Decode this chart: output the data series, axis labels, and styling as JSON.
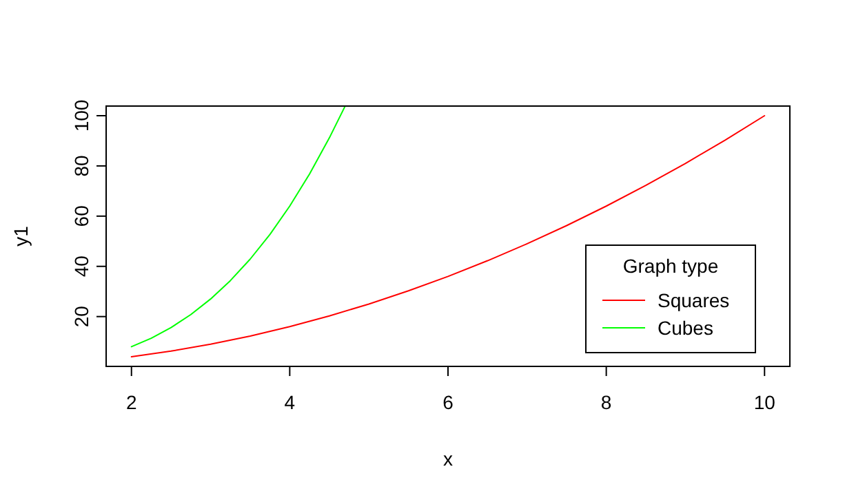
{
  "chart_data": {
    "type": "line",
    "xlabel": "x",
    "ylabel": "y1",
    "legend_title": "Graph type",
    "legend": "bottom right",
    "grid": false,
    "line_style": "solid",
    "marker": "none",
    "xlim": [
      1.68,
      10.32
    ],
    "ylim": [
      0.16,
      103.84
    ],
    "xticks": [
      2,
      4,
      6,
      8,
      10
    ],
    "yticks": [
      20,
      40,
      60,
      80,
      100
    ],
    "series": [
      {
        "name": "Squares",
        "color": "#ff0000",
        "x": [
          2,
          2.5,
          3,
          3.5,
          4,
          4.5,
          5,
          5.5,
          6,
          6.5,
          7,
          7.5,
          8,
          8.5,
          9,
          9.5,
          10
        ],
        "values": [
          4,
          6.25,
          9,
          12.25,
          16,
          20.25,
          25,
          30.25,
          36,
          42.25,
          49,
          56.25,
          64,
          72.25,
          81,
          90.25,
          100
        ]
      },
      {
        "name": "Cubes",
        "color": "#00ff00",
        "x": [
          2,
          2.25,
          2.5,
          2.75,
          3,
          3.25,
          3.5,
          3.75,
          4,
          4.25,
          4.5,
          4.7
        ],
        "values": [
          8,
          11.39,
          15.63,
          20.8,
          27,
          34.33,
          42.88,
          52.73,
          64,
          76.77,
          91.13,
          103.82
        ]
      }
    ]
  }
}
